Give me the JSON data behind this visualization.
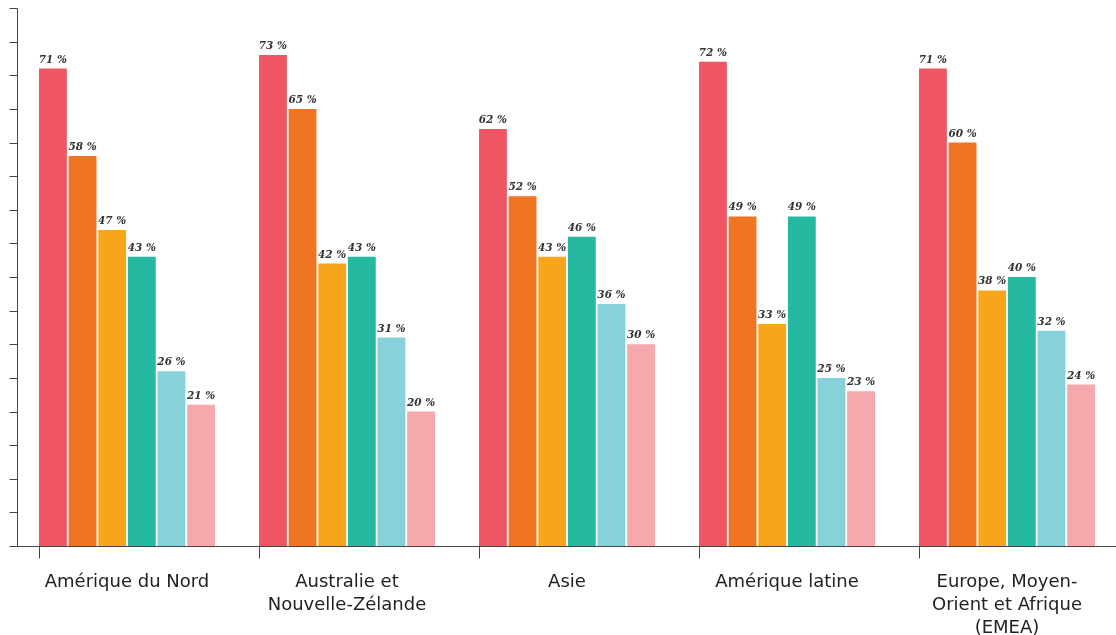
{
  "chart_data": {
    "type": "bar",
    "categories": [
      "Amérique du Nord",
      "Australie et Nouvelle-Zélande",
      "Asie",
      "Amérique latine",
      "Europe, Moyen-Orient et Afrique (EMEA)"
    ],
    "series": [
      {
        "color": "#ef5562",
        "values": [
          71,
          73,
          62,
          72,
          71
        ],
        "value_labels": [
          "71 %",
          "73 %",
          "62 %",
          "72 %",
          "71 %"
        ]
      },
      {
        "color": "#f07522",
        "values": [
          58,
          65,
          52,
          49,
          60
        ],
        "value_labels": [
          "58 %",
          "65 %",
          "52 %",
          "49 %",
          "60 %"
        ]
      },
      {
        "color": "#f7a51c",
        "values": [
          47,
          42,
          43,
          33,
          38
        ],
        "value_labels": [
          "47 %",
          "42 %",
          "43 %",
          "33 %",
          "38 %"
        ]
      },
      {
        "color": "#25b9a1",
        "values": [
          43,
          43,
          46,
          49,
          40
        ],
        "value_labels": [
          "43 %",
          "43 %",
          "46 %",
          "49 %",
          "40 %"
        ]
      },
      {
        "color": "#86d1da",
        "values": [
          26,
          31,
          36,
          25,
          32
        ],
        "value_labels": [
          "26 %",
          "31 %",
          "36 %",
          "25 %",
          "32 %"
        ]
      },
      {
        "color": "#f6a8ac",
        "values": [
          21,
          20,
          30,
          23,
          24
        ],
        "value_labels": [
          "21 %",
          "20 %",
          "30 %",
          "23 %",
          "24 %"
        ]
      }
    ],
    "tick_labels": "x",
    "legend": false
  }
}
